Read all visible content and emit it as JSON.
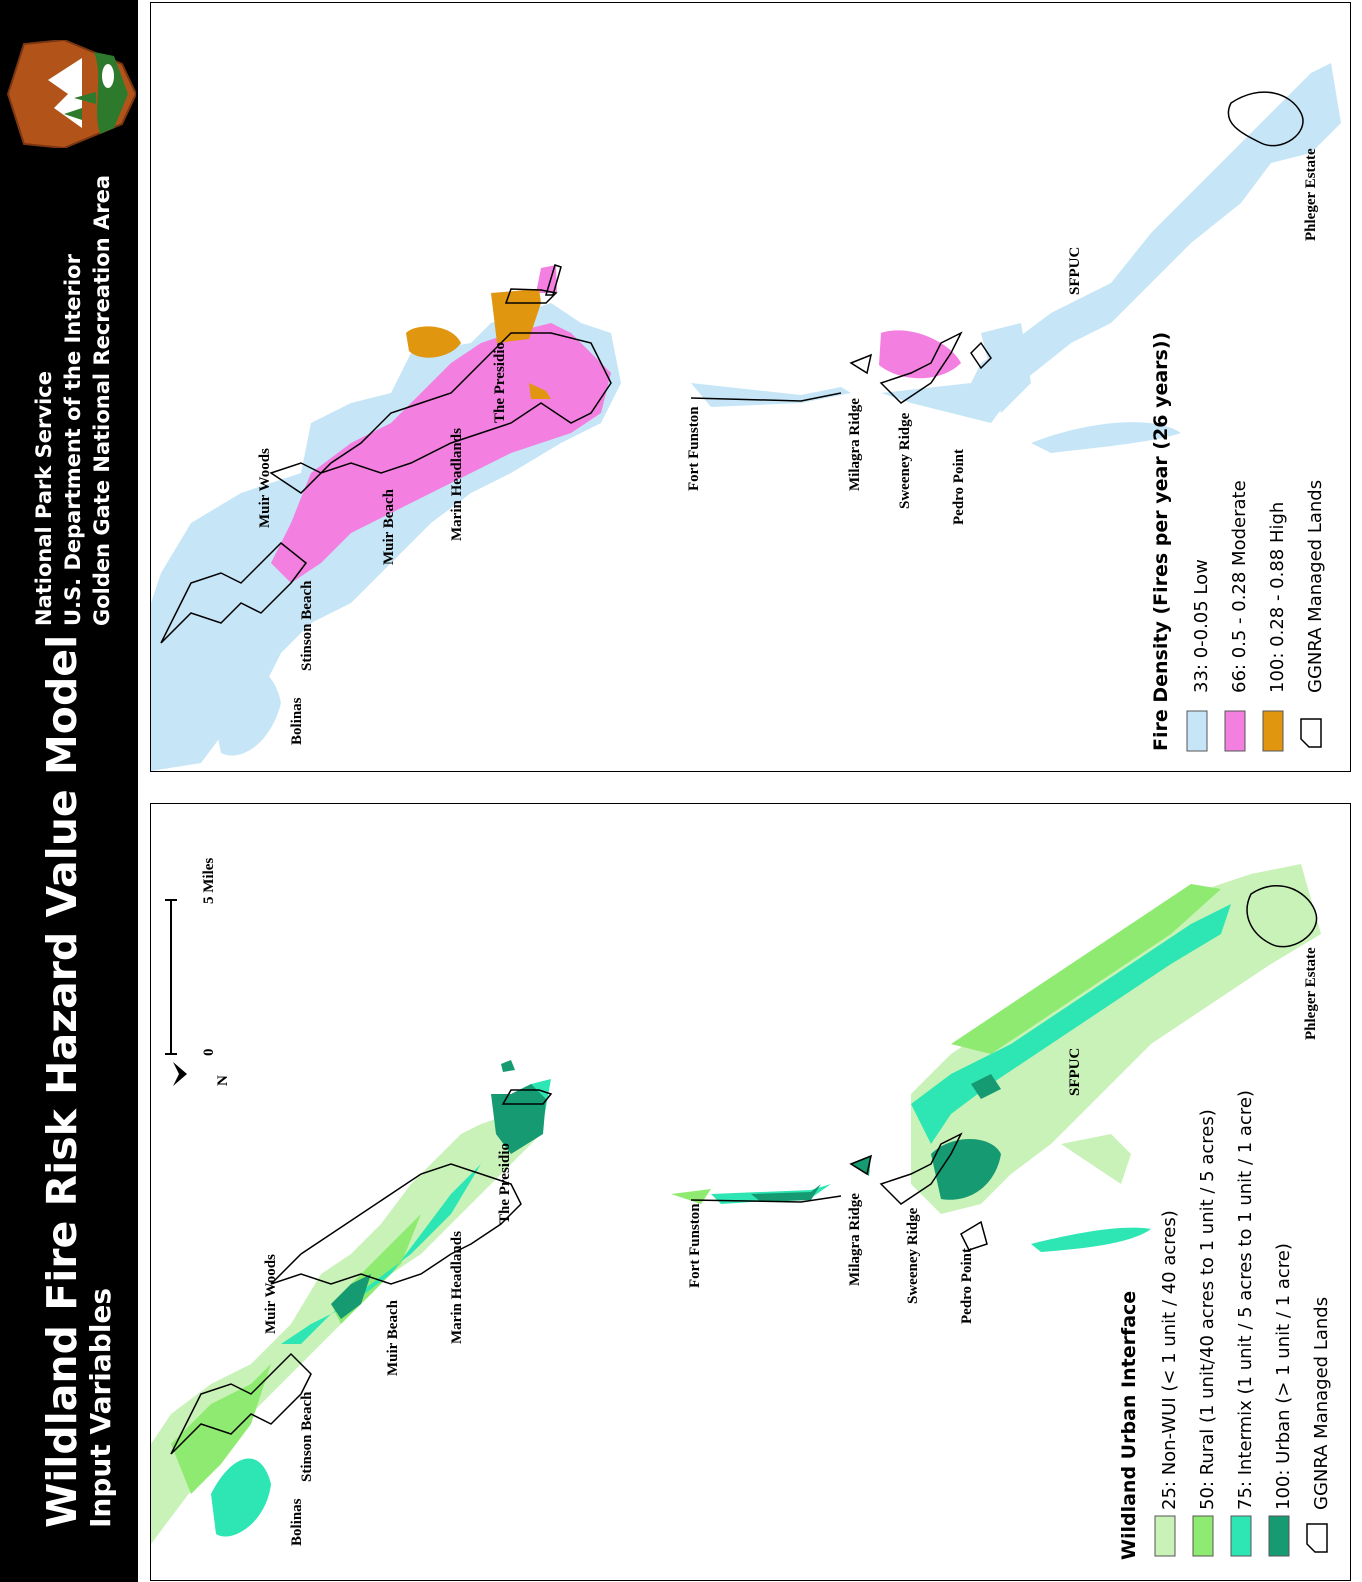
{
  "header": {
    "title": "Wildland Fire Risk Hazard Value Model",
    "subtitle": "Input Variables",
    "agency_lines": [
      "National Park Service",
      "U.S. Department of the Interior",
      "Golden Gate National Recreation Area"
    ],
    "logo_text": "NATIONAL PARK SERVICE"
  },
  "place_labels": {
    "bolinas": "Bolinas",
    "stinson": "Stinson Beach",
    "muir_woods": "Muir Woods",
    "muir_beach": "Muir Beach",
    "marin": "Marin Headlands",
    "presidio": "The Presidio",
    "funston": "Fort Funston",
    "milagra": "Milagra Ridge",
    "sweeney": "Sweeney Ridge",
    "pedro": "Pedro Point",
    "sfpuc": "SFPUC",
    "phleger": "Phleger Estate"
  },
  "scale_bar": {
    "zero": "0",
    "five": "5 Miles",
    "north": "N"
  },
  "fire_legend": {
    "title": "Fire Density (Fires per year (26 years))",
    "items": [
      {
        "label": "33: 0-0.05 Low",
        "color": "#c6e6f7"
      },
      {
        "label": "66: 0.5 - 0.28 Moderate",
        "color": "#f37fe0"
      },
      {
        "label": "100: 0.28 - 0.88 High",
        "color": "#e0960f"
      },
      {
        "label": "GGNRA Managed Lands",
        "color": "#ffffff"
      }
    ]
  },
  "wui_legend": {
    "title": "Wildland Urban Interface",
    "items": [
      {
        "label": "25: Non-WUI (< 1 unit / 40 acres)",
        "color": "#c9f2b8"
      },
      {
        "label": "50: Rural (1 unit/40 acres to 1 unit / 5 acres)",
        "color": "#8fea71"
      },
      {
        "label": "75: Intermix (1 unit / 5 acres to 1 unit / 1 acre)",
        "color": "#2ee6b3"
      },
      {
        "label": "100: Urban (> 1 unit / 1 acre)",
        "color": "#159a72"
      },
      {
        "label": "GGNRA Managed Lands",
        "color": "#ffffff"
      }
    ]
  }
}
